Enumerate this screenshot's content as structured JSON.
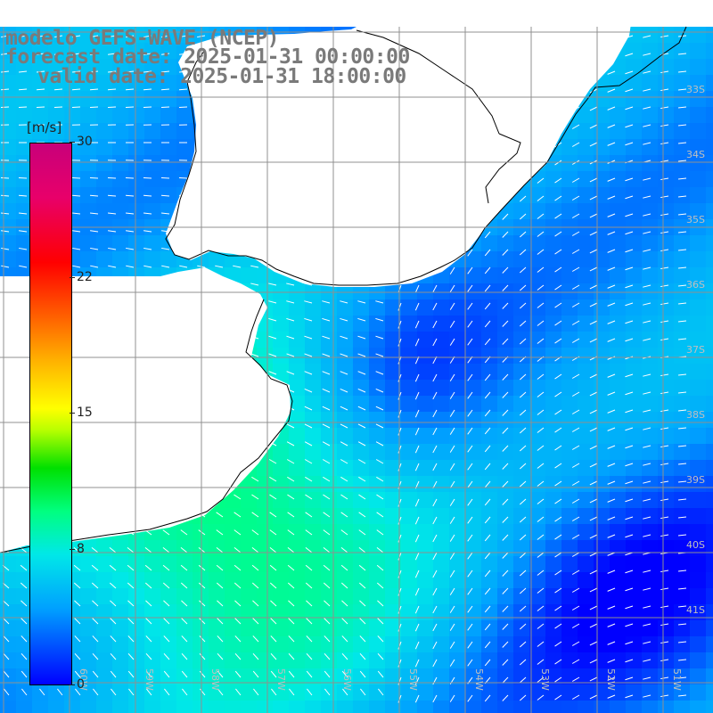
{
  "title": {
    "line1": "modelo GEFS-WAVE (NCEP)",
    "line2": "forecast date: 2025-01-31 00:00:00",
    "line3": "valid date: 2025-01-31 18:00:00"
  },
  "colorbar": {
    "unit": "[m/s]",
    "min": 0,
    "max": 30,
    "ticks": [
      "30",
      "22",
      "15",
      "8",
      "0"
    ],
    "colors": [
      "#0000ff",
      "#00a0ff",
      "#00e8e8",
      "#00ff80",
      "#00e000",
      "#ffff00",
      "#ff6000",
      "#ff0000",
      "#c8007a"
    ]
  },
  "grid": {
    "lon_labels": [
      "60W",
      "59W",
      "58W",
      "57W",
      "56W",
      "55W",
      "54W",
      "53W",
      "52W",
      "51W"
    ],
    "lat_labels": [
      "33S",
      "34S",
      "35S",
      "36S",
      "37S",
      "38S",
      "39S",
      "40S",
      "41S"
    ]
  },
  "colors": {
    "land": "#ffffff",
    "coast": "#000000",
    "grid": "#909090",
    "arrow": "#ffffff",
    "title": "#7a7a7a"
  }
}
